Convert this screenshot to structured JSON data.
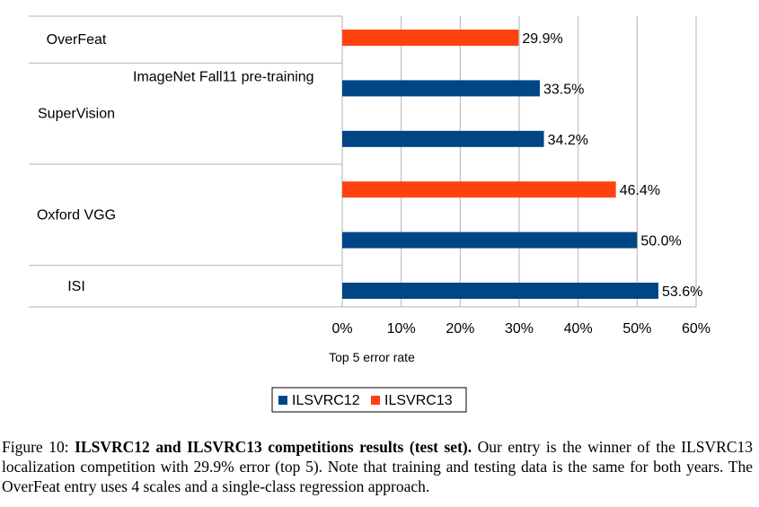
{
  "chart_data": {
    "type": "bar",
    "orientation": "horizontal",
    "xlabel": "Top 5 error rate",
    "xlim": [
      0,
      60
    ],
    "x_ticks": [
      "0%",
      "10%",
      "20%",
      "30%",
      "40%",
      "50%",
      "60%"
    ],
    "grid": true,
    "legend_position": "bottom",
    "groups": [
      {
        "name": "OverFeat",
        "bars": [
          {
            "series": "ILSVRC13",
            "value": 29.9,
            "label": "29.9%",
            "note": ""
          }
        ]
      },
      {
        "name": "SuperVision",
        "bars": [
          {
            "series": "ILSVRC12",
            "value": 33.5,
            "label": "33.5%",
            "note": "ImageNet Fall11 pre-training"
          },
          {
            "series": "ILSVRC12",
            "value": 34.2,
            "label": "34.2%",
            "note": ""
          }
        ]
      },
      {
        "name": "Oxford VGG",
        "bars": [
          {
            "series": "ILSVRC13",
            "value": 46.4,
            "label": "46.4%",
            "note": ""
          },
          {
            "series": "ILSVRC12",
            "value": 50.0,
            "label": "50.0%",
            "note": ""
          }
        ]
      },
      {
        "name": "ISI",
        "bars": [
          {
            "series": "ILSVRC12",
            "value": 53.6,
            "label": "53.6%",
            "note": ""
          }
        ]
      }
    ],
    "series": [
      {
        "name": "ILSVRC12",
        "color": "#004586"
      },
      {
        "name": "ILSVRC13",
        "color": "#ff420e"
      }
    ]
  },
  "caption": {
    "prefix": "Figure 10: ",
    "bold": "ILSVRC12 and ILSVRC13 competitions results (test set).",
    "text": " Our entry is the winner of the ILSVRC13 localization competition with 29.9% error (top 5). Note that training and testing data is the same for both years. The OverFeat entry uses 4 scales and a single-class regression approach."
  }
}
